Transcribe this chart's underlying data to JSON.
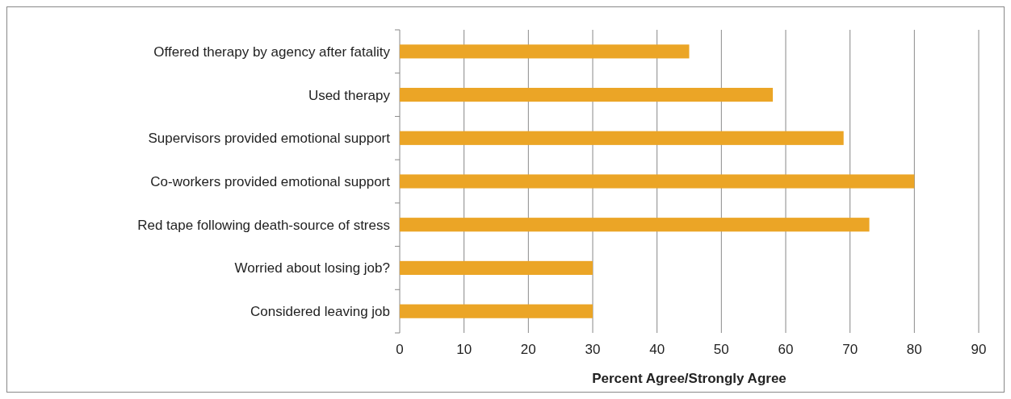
{
  "chart_data": {
    "type": "bar",
    "orientation": "horizontal",
    "xlabel": "Percent Agree/Strongly Agree",
    "categories": [
      "Offered therapy by agency after fatality",
      "Used therapy",
      "Supervisors provided emotional support",
      "Co-workers provided emotional support",
      "Red tape following death-source of stress",
      "Worried about losing job?",
      "Considered leaving job"
    ],
    "values": [
      45,
      58,
      69,
      80,
      73,
      30,
      30
    ],
    "color": "#eba526",
    "xlim": [
      0,
      90
    ],
    "xticks": [
      0,
      10,
      20,
      30,
      40,
      50,
      60,
      70,
      80,
      90
    ],
    "grid": "x"
  }
}
